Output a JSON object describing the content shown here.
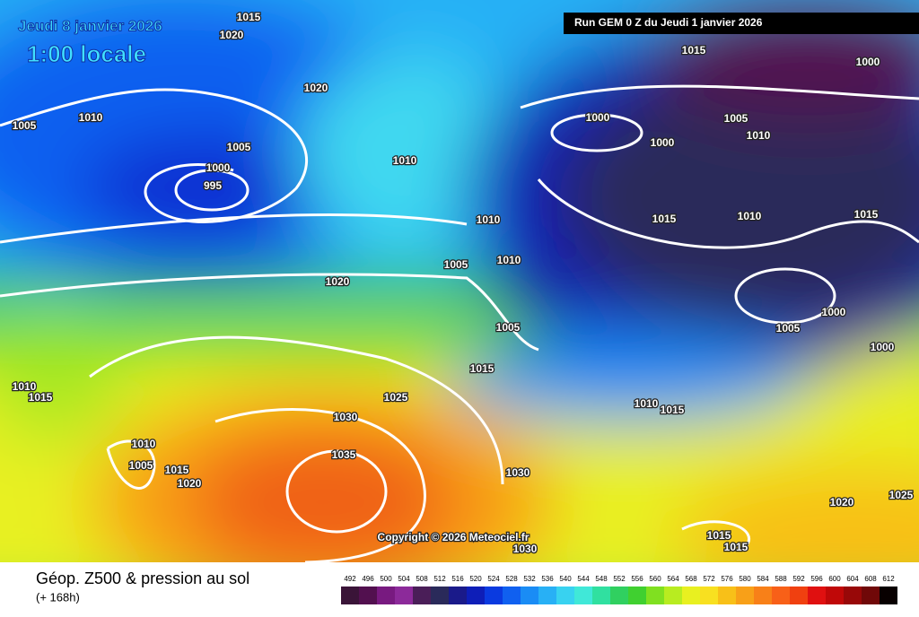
{
  "header": {
    "date": "Jeudi 8 janvier 2026",
    "time": "1:00 locale",
    "run": "Run GEM 0 Z du Jeudi 1 janvier 2026"
  },
  "copyright": "Copyright © 2026 Meteociel.fr",
  "footer": {
    "title": "Géop. Z500 & pression au sol",
    "subtitle": "(+ 168h)"
  },
  "isobar_labels": [
    1015,
    1020,
    1020,
    1005,
    1010,
    1005,
    1000,
    995,
    1010,
    1010,
    1005,
    1010,
    1020,
    1005,
    1015,
    1025,
    1030,
    1035,
    1030,
    1010,
    1005,
    1015,
    1020,
    1010,
    1015,
    1015,
    1000,
    1000,
    1005,
    1010,
    1000,
    1015,
    1010,
    1015,
    1000,
    1005,
    1000,
    1010,
    1015,
    1030,
    1015,
    1015,
    1020,
    1025
  ],
  "legend": {
    "values": [
      492,
      496,
      500,
      504,
      508,
      512,
      516,
      520,
      524,
      528,
      532,
      536,
      540,
      544,
      548,
      552,
      556,
      560,
      564,
      568,
      572,
      576,
      580,
      584,
      588,
      592,
      596,
      600,
      604,
      608,
      612
    ],
    "colors": [
      "#3a1438",
      "#52104f",
      "#781a80",
      "#8c2a9a",
      "#4a1e58",
      "#2a2a5a",
      "#1a1a8a",
      "#0e1eb8",
      "#0a3ae0",
      "#1060f0",
      "#1a8cf5",
      "#28b0f5",
      "#38d2f0",
      "#40e8d8",
      "#30e0a0",
      "#30d060",
      "#40d030",
      "#80e020",
      "#b8ec20",
      "#e8f020",
      "#f8e020",
      "#f8c018",
      "#f8a018",
      "#f88018",
      "#f86018",
      "#f04010",
      "#e01010",
      "#c00808",
      "#980808",
      "#700808",
      "#080000"
    ]
  }
}
